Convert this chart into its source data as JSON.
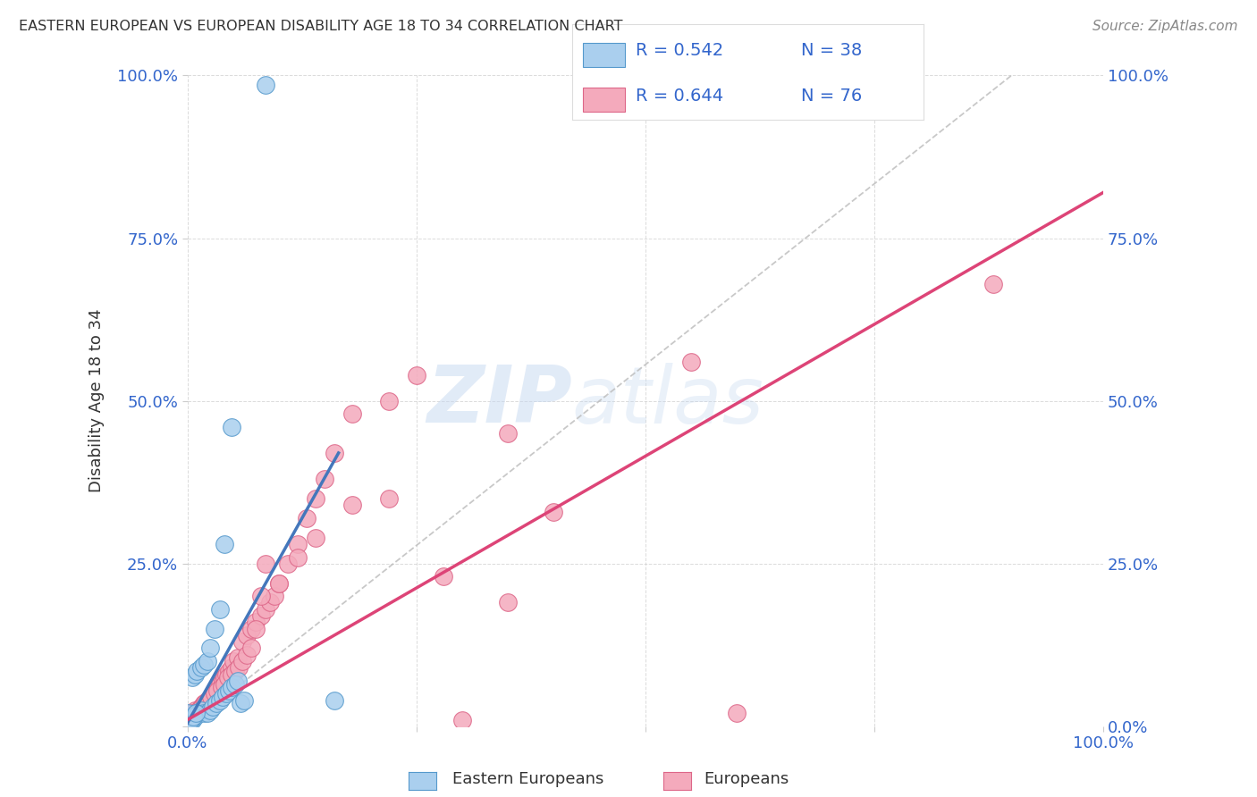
{
  "title": "EASTERN EUROPEAN VS EUROPEAN DISABILITY AGE 18 TO 34 CORRELATION CHART",
  "source": "Source: ZipAtlas.com",
  "ylabel": "Disability Age 18 to 34",
  "legend_label1": "Eastern Europeans",
  "legend_label2": "Europeans",
  "legend_R1": "R = 0.542",
  "legend_N1": "N = 38",
  "legend_R2": "R = 0.644",
  "legend_N2": "N = 76",
  "color_blue_fill": "#aacfee",
  "color_blue_edge": "#5599cc",
  "color_blue_line": "#4477bb",
  "color_pink_fill": "#f4aabc",
  "color_pink_edge": "#dd6688",
  "color_pink_line": "#dd4477",
  "color_dashed": "#bbbbbb",
  "color_grid": "#cccccc",
  "color_text": "#333333",
  "color_blue_label": "#3366cc",
  "background_color": "#ffffff",
  "watermark": "ZIPatlas",
  "blue_x": [
    0.085,
    0.0,
    0.01,
    0.005,
    0.002,
    0.008,
    0.012,
    0.015,
    0.018,
    0.022,
    0.025,
    0.028,
    0.032,
    0.035,
    0.038,
    0.042,
    0.045,
    0.048,
    0.052,
    0.055,
    0.058,
    0.062,
    0.005,
    0.008,
    0.01,
    0.015,
    0.018,
    0.022,
    0.025,
    0.03,
    0.035,
    0.04,
    0.048,
    0.16,
    0.001,
    0.003,
    0.006,
    0.009
  ],
  "blue_y": [
    0.985,
    0.02,
    0.02,
    0.01,
    0.01,
    0.015,
    0.02,
    0.025,
    0.02,
    0.02,
    0.025,
    0.03,
    0.035,
    0.04,
    0.045,
    0.05,
    0.055,
    0.06,
    0.065,
    0.07,
    0.035,
    0.04,
    0.075,
    0.08,
    0.085,
    0.09,
    0.095,
    0.1,
    0.12,
    0.15,
    0.18,
    0.28,
    0.46,
    0.04,
    0.01,
    0.01,
    0.015,
    0.02
  ],
  "pink_x": [
    0.88,
    0.0,
    0.002,
    0.005,
    0.008,
    0.01,
    0.013,
    0.015,
    0.018,
    0.02,
    0.022,
    0.025,
    0.028,
    0.03,
    0.033,
    0.035,
    0.038,
    0.04,
    0.042,
    0.045,
    0.048,
    0.05,
    0.055,
    0.06,
    0.065,
    0.07,
    0.075,
    0.08,
    0.085,
    0.09,
    0.095,
    0.1,
    0.11,
    0.12,
    0.13,
    0.14,
    0.15,
    0.16,
    0.18,
    0.22,
    0.25,
    0.3,
    0.35,
    0.4,
    0.55,
    0.6,
    0.0,
    0.003,
    0.006,
    0.009,
    0.012,
    0.016,
    0.019,
    0.023,
    0.026,
    0.03,
    0.033,
    0.037,
    0.04,
    0.044,
    0.048,
    0.052,
    0.056,
    0.06,
    0.065,
    0.07,
    0.075,
    0.08,
    0.085,
    0.1,
    0.12,
    0.14,
    0.18,
    0.22,
    0.28,
    0.35
  ],
  "pink_y": [
    0.68,
    0.01,
    0.015,
    0.02,
    0.025,
    0.02,
    0.025,
    0.03,
    0.035,
    0.03,
    0.04,
    0.035,
    0.05,
    0.055,
    0.06,
    0.065,
    0.07,
    0.075,
    0.08,
    0.085,
    0.09,
    0.1,
    0.105,
    0.13,
    0.14,
    0.15,
    0.16,
    0.17,
    0.18,
    0.19,
    0.2,
    0.22,
    0.25,
    0.28,
    0.32,
    0.35,
    0.38,
    0.42,
    0.48,
    0.5,
    0.54,
    0.01,
    0.19,
    0.33,
    0.56,
    0.02,
    0.01,
    0.015,
    0.02,
    0.02,
    0.025,
    0.03,
    0.035,
    0.04,
    0.045,
    0.05,
    0.055,
    0.06,
    0.065,
    0.075,
    0.08,
    0.085,
    0.09,
    0.1,
    0.11,
    0.12,
    0.15,
    0.2,
    0.25,
    0.22,
    0.26,
    0.29,
    0.34,
    0.35,
    0.23,
    0.45
  ],
  "blue_line_x": [
    0.0,
    0.165
  ],
  "blue_line_y": [
    0.005,
    0.42
  ],
  "pink_line_x": [
    0.0,
    1.0
  ],
  "pink_line_y": [
    0.01,
    0.82
  ],
  "dash_line_x": [
    0.0,
    0.9
  ],
  "dash_line_y": [
    0.0,
    1.0
  ],
  "xlim": [
    0.0,
    1.0
  ],
  "ylim": [
    0.0,
    1.0
  ],
  "xticks": [
    0.0,
    0.25,
    0.5,
    0.75,
    1.0
  ],
  "yticks": [
    0.0,
    0.25,
    0.5,
    0.75,
    1.0
  ],
  "xtick_labels": [
    "0.0%",
    "",
    "",
    "",
    "100.0%"
  ],
  "ytick_labels": [
    "",
    "25.0%",
    "50.0%",
    "75.0%",
    "100.0%"
  ],
  "right_ytick_labels": [
    "0.0%",
    "25.0%",
    "50.0%",
    "75.0%",
    "100.0%"
  ]
}
